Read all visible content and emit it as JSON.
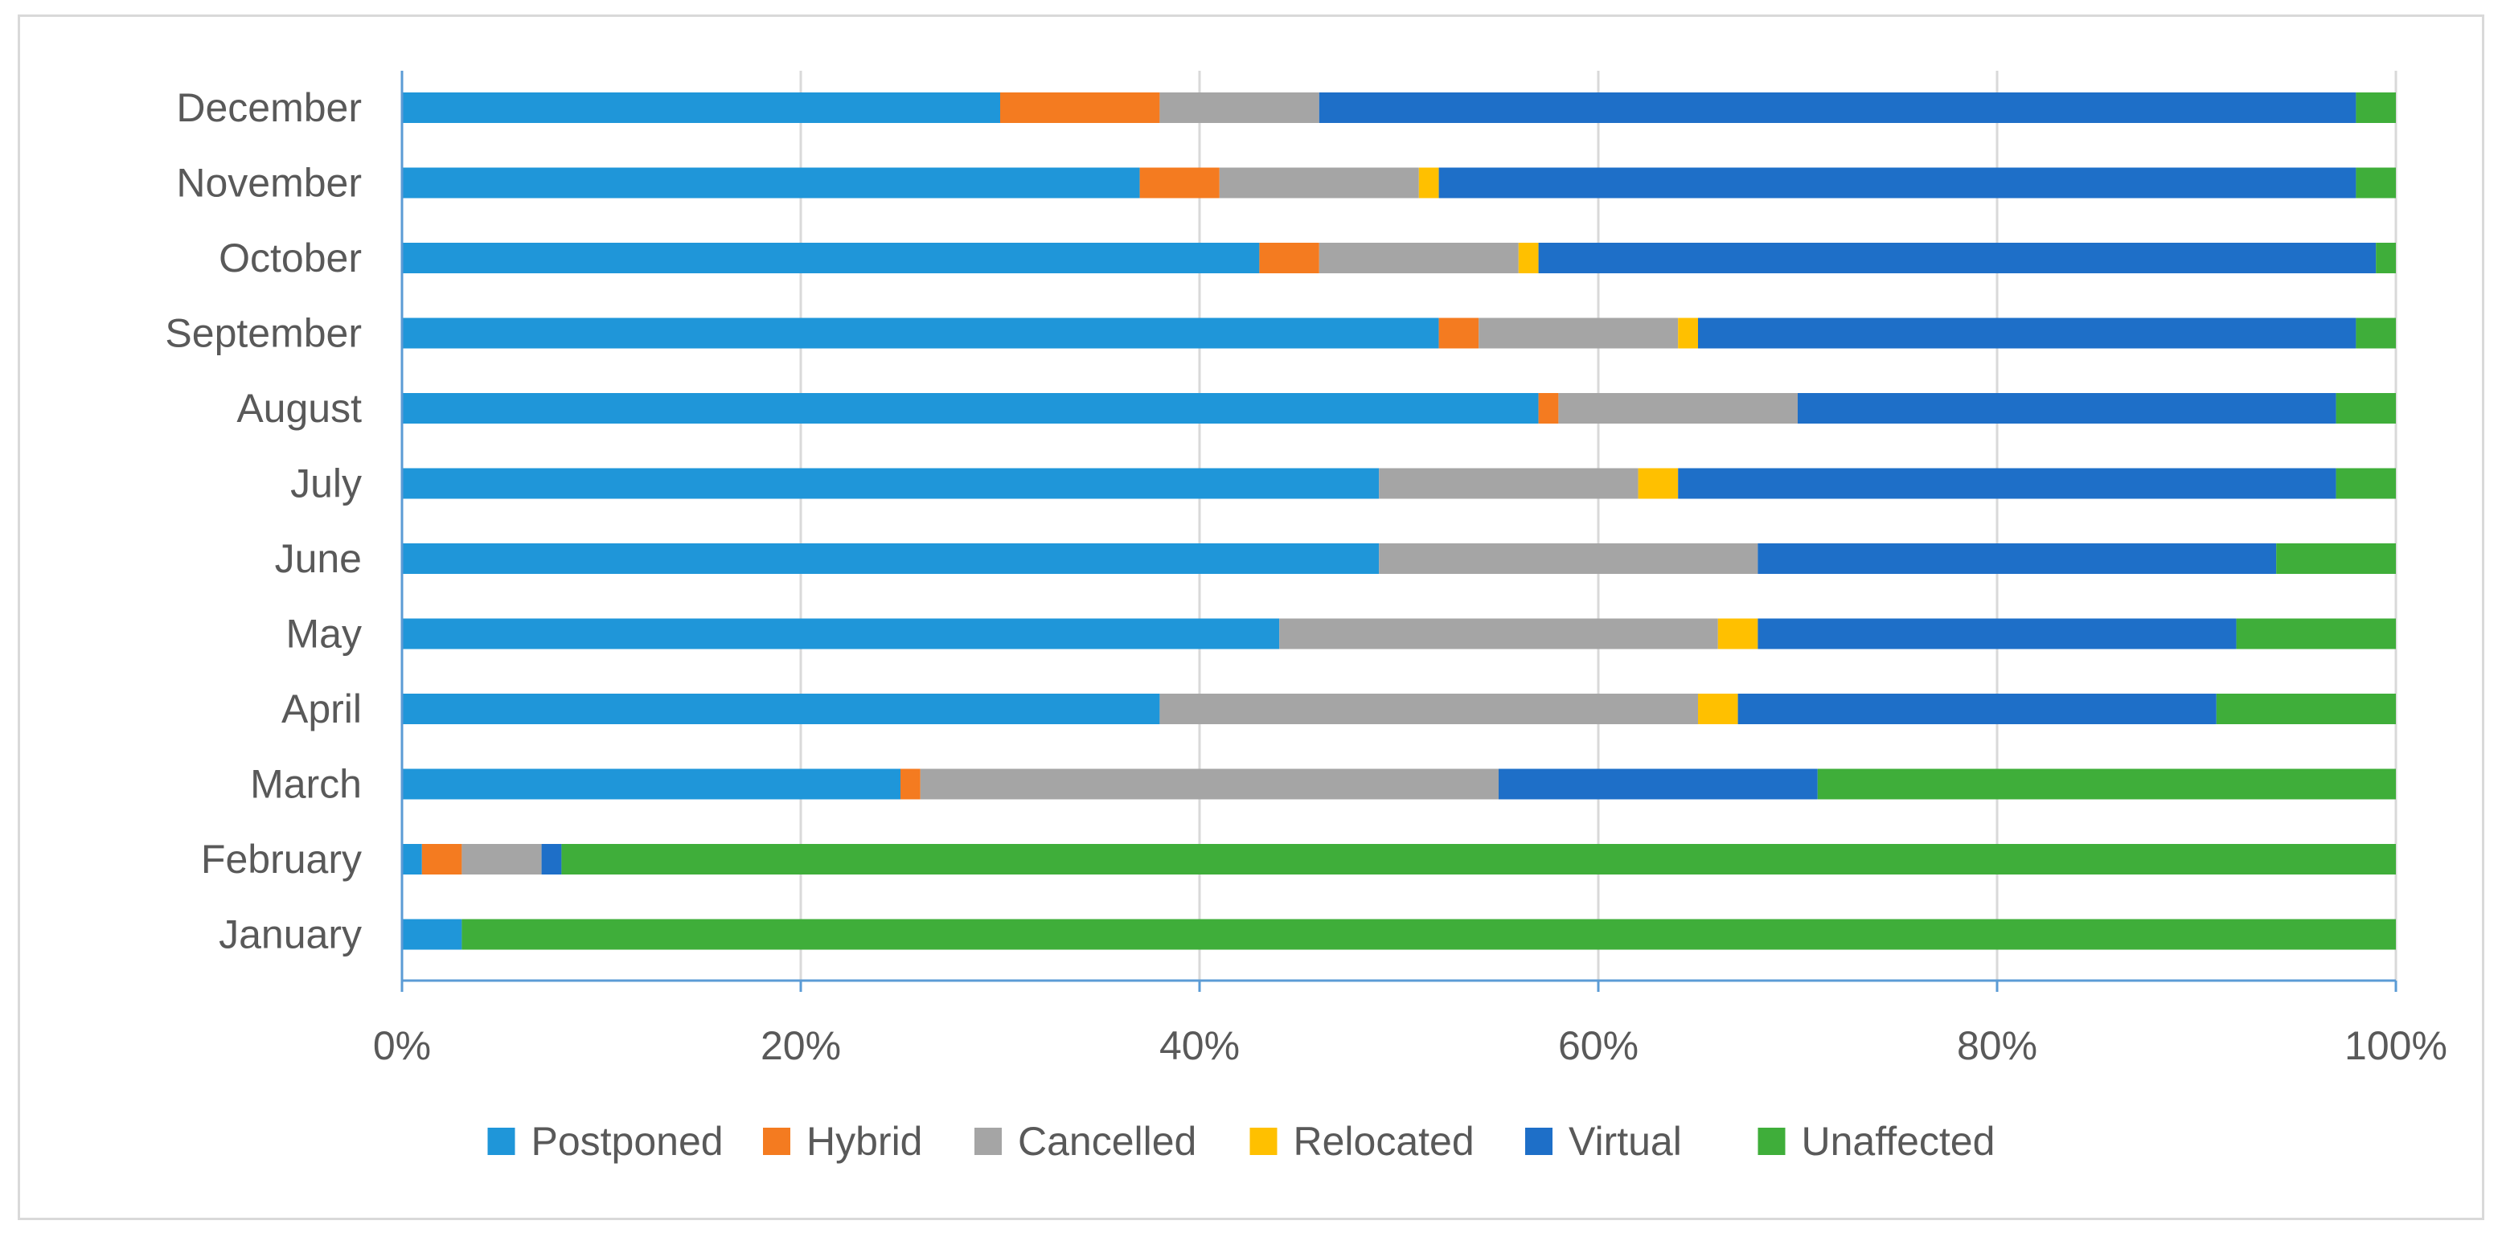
{
  "chart_data": {
    "type": "bar",
    "orientation": "horizontal",
    "stacked": "percent",
    "title": "",
    "xlabel": "",
    "ylabel": "",
    "xlim": [
      0,
      100
    ],
    "x_ticks": [
      "0%",
      "20%",
      "40%",
      "60%",
      "80%",
      "100%"
    ],
    "x_tick_values": [
      0,
      20,
      40,
      60,
      80,
      100
    ],
    "grid": true,
    "legend_position": "bottom",
    "categories": [
      "December",
      "November",
      "October",
      "September",
      "August",
      "July",
      "June",
      "May",
      "April",
      "March",
      "February",
      "January"
    ],
    "series": [
      {
        "name": "Postponed",
        "color": "#1F96D9",
        "values": [
          30,
          37,
          43,
          52,
          57,
          49,
          49,
          44,
          38,
          25,
          1,
          3
        ]
      },
      {
        "name": "Hybrid",
        "color": "#F47B20",
        "values": [
          8,
          4,
          3,
          2,
          1,
          0,
          0,
          0,
          0,
          1,
          2,
          0
        ]
      },
      {
        "name": "Cancelled",
        "color": "#A5A5A5",
        "values": [
          8,
          10,
          10,
          10,
          12,
          13,
          19,
          22,
          27,
          29,
          4,
          0
        ]
      },
      {
        "name": "Relocated",
        "color": "#FFC000",
        "values": [
          0,
          1,
          1,
          1,
          0,
          2,
          0,
          2,
          2,
          0,
          0,
          0
        ]
      },
      {
        "name": "Virtual",
        "color": "#1E6FC8",
        "values": [
          52,
          46,
          42,
          33,
          27,
          33,
          26,
          24,
          24,
          16,
          1,
          0
        ]
      },
      {
        "name": "Unaffected",
        "color": "#3FAE3A",
        "values": [
          2,
          2,
          1,
          2,
          3,
          3,
          6,
          8,
          9,
          29,
          92,
          97
        ]
      }
    ]
  }
}
